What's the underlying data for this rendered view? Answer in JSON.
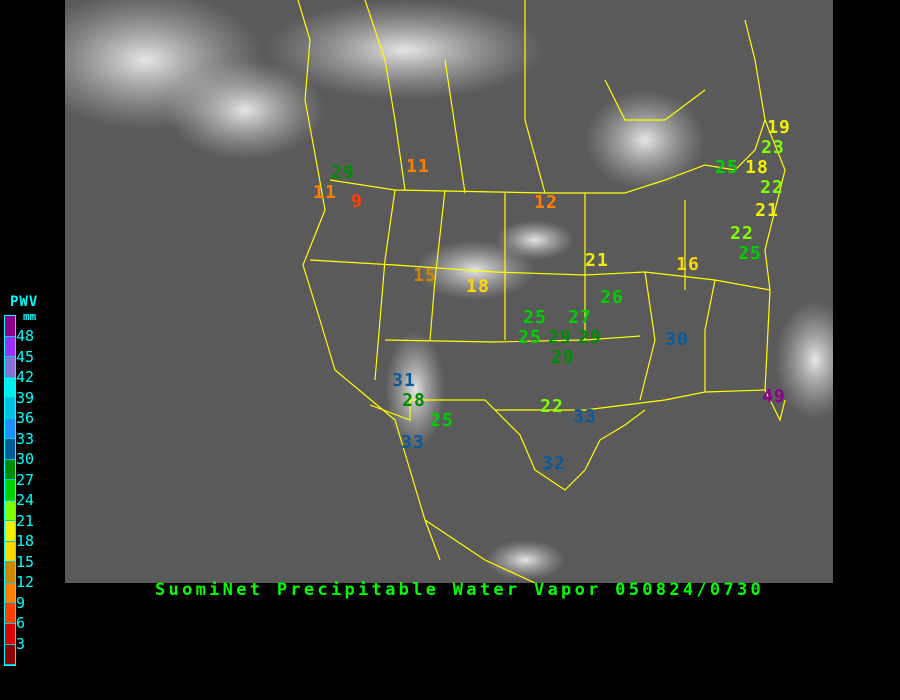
{
  "caption": "SuomiNet Precipitable Water Vapor 050824/0730",
  "legend": {
    "title": "PWV",
    "unit": "mm",
    "ticks": [
      "48",
      "45",
      "42",
      "39",
      "36",
      "33",
      "30",
      "27",
      "24",
      "21",
      "18",
      "15",
      "12",
      "9",
      "6",
      "3"
    ],
    "colors": [
      "#8b008b",
      "#9932ff",
      "#8870d8",
      "#00f0f0",
      "#00c0e8",
      "#1e90ff",
      "#0a5a9a",
      "#008c00",
      "#00d000",
      "#80ff00",
      "#f0f000",
      "#ffd700",
      "#cc8800",
      "#ff8000",
      "#ff4000",
      "#dd0000",
      "#8b0000"
    ]
  },
  "map": {
    "border_color": "#ffff00",
    "stations": [
      {
        "value": "29",
        "color": "#008c00"
      },
      {
        "value": "11",
        "color": "#ff8000"
      },
      {
        "value": "11",
        "color": "#ff8000"
      },
      {
        "value": "9",
        "color": "#ff4000"
      },
      {
        "value": "12",
        "color": "#ff8000"
      },
      {
        "value": "21",
        "color": "#f0f000"
      },
      {
        "value": "16",
        "color": "#ffd700"
      },
      {
        "value": "15",
        "color": "#cc8800"
      },
      {
        "value": "18",
        "color": "#ffd700"
      },
      {
        "value": "26",
        "color": "#00d000"
      },
      {
        "value": "25",
        "color": "#00d000"
      },
      {
        "value": "27",
        "color": "#00d000"
      },
      {
        "value": "25",
        "color": "#00d000"
      },
      {
        "value": "29",
        "color": "#008c00"
      },
      {
        "value": "29",
        "color": "#008c00"
      },
      {
        "value": "29",
        "color": "#008c00"
      },
      {
        "value": "30",
        "color": "#0a5a9a"
      },
      {
        "value": "31",
        "color": "#0a5a9a"
      },
      {
        "value": "28",
        "color": "#008c00"
      },
      {
        "value": "25",
        "color": "#00d000"
      },
      {
        "value": "22",
        "color": "#80ff00"
      },
      {
        "value": "33",
        "color": "#0a5a9a"
      },
      {
        "value": "33",
        "color": "#0a5a9a"
      },
      {
        "value": "32",
        "color": "#0a5a9a"
      },
      {
        "value": "49",
        "color": "#8b008b"
      },
      {
        "value": "19",
        "color": "#f0f000"
      },
      {
        "value": "23",
        "color": "#80ff00"
      },
      {
        "value": "25",
        "color": "#00d000"
      },
      {
        "value": "18",
        "color": "#f0f000"
      },
      {
        "value": "22",
        "color": "#80ff00"
      },
      {
        "value": "21",
        "color": "#f0f000"
      },
      {
        "value": "22",
        "color": "#80ff00"
      },
      {
        "value": "25",
        "color": "#00d000"
      }
    ]
  }
}
